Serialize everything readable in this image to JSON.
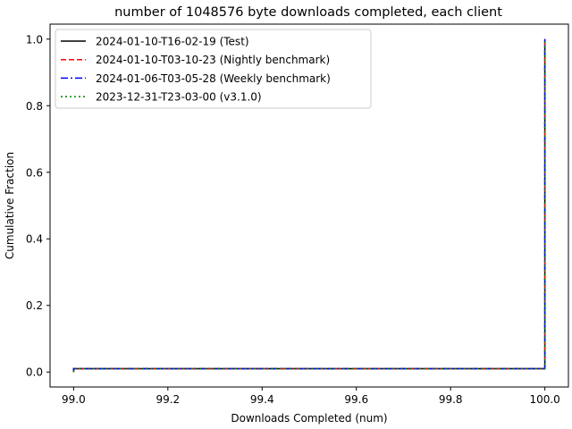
{
  "chart_data": {
    "type": "line",
    "title": "number of 1048576 byte downloads completed, each client",
    "xlabel": "Downloads Completed (num)",
    "ylabel": "Cumulative Fraction",
    "xlim": [
      98.95,
      100.05
    ],
    "ylim": [
      -0.045,
      1.045
    ],
    "xticks": [
      99.0,
      99.2,
      99.4,
      99.6,
      99.8,
      100.0
    ],
    "xtick_labels": [
      "99.0",
      "99.2",
      "99.4",
      "99.6",
      "99.8",
      "100.0"
    ],
    "yticks": [
      0.0,
      0.2,
      0.4,
      0.6,
      0.8,
      1.0
    ],
    "ytick_labels": [
      "0.0",
      "0.2",
      "0.4",
      "0.6",
      "0.8",
      "1.0"
    ],
    "grid": false,
    "legend_position": "top-left",
    "series": [
      {
        "name": "2024-01-10-T16-02-19 (Test)",
        "color": "#000000",
        "style": "solid",
        "x": [
          99.0,
          99.0,
          100.0,
          100.0
        ],
        "y": [
          0.0,
          0.01,
          0.01,
          1.0
        ]
      },
      {
        "name": "2024-01-10-T03-10-23 (Nightly benchmark)",
        "color": "#ff0000",
        "style": "dashed",
        "x": [
          99.0,
          99.0,
          100.0,
          100.0
        ],
        "y": [
          0.0,
          0.01,
          0.01,
          1.0
        ]
      },
      {
        "name": "2024-01-06-T03-05-28 (Weekly benchmark)",
        "color": "#0000ff",
        "style": "dashdot",
        "x": [
          99.0,
          99.0,
          100.0,
          100.0
        ],
        "y": [
          0.0,
          0.01,
          0.01,
          1.0
        ]
      },
      {
        "name": "2023-12-31-T23-03-00 (v3.1.0)",
        "color": "#008000",
        "style": "dotted",
        "x": [
          99.0,
          99.0,
          100.0,
          100.0
        ],
        "y": [
          0.0,
          0.01,
          0.01,
          1.0
        ]
      }
    ]
  }
}
